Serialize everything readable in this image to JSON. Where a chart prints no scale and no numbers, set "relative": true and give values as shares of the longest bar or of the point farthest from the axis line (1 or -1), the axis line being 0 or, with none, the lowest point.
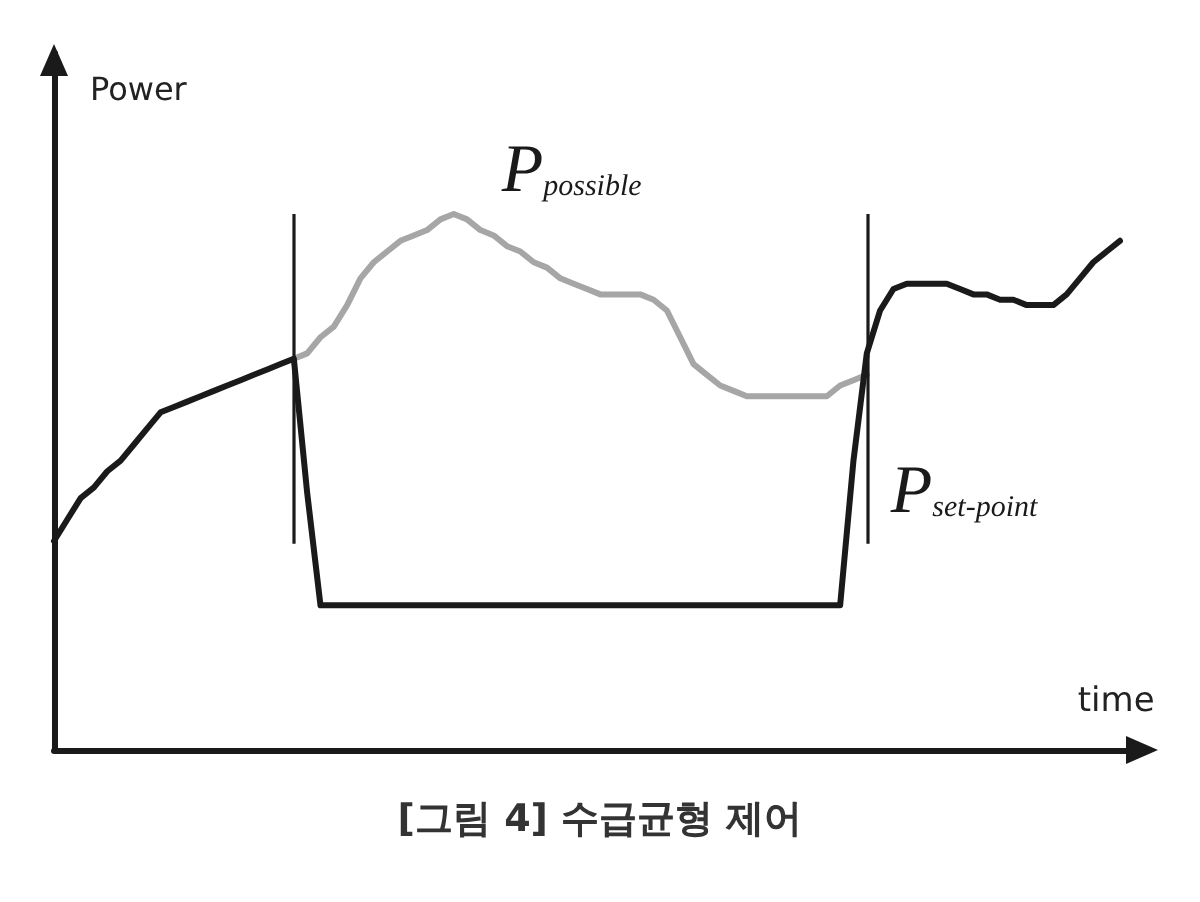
{
  "chart_data": {
    "type": "line",
    "title": "[그림 4] 수급균형 제어",
    "xlabel": "time",
    "ylabel": "Power",
    "relative": true,
    "categories": [
      null,
      null,
      null,
      null,
      null,
      null,
      null,
      null,
      null,
      null,
      null,
      null,
      null,
      null,
      null,
      null,
      null,
      null,
      null,
      null,
      null,
      null,
      null,
      null,
      null,
      null,
      null,
      null,
      null,
      null,
      null,
      null,
      null,
      null,
      null,
      null,
      null,
      null,
      null,
      null,
      null,
      null,
      null,
      null,
      null,
      null,
      null,
      null,
      null,
      null,
      null,
      null,
      null,
      null,
      null,
      null,
      null,
      null,
      null,
      null,
      null,
      null,
      null,
      null,
      null,
      null,
      null,
      null,
      null,
      null,
      null,
      null,
      null,
      null,
      null,
      null,
      null,
      null,
      null,
      null,
      null,
      null,
      null
    ],
    "series": [
      {
        "name": "P$_{possible}$",
        "color": "#a6a6a6",
        "values": [
          null,
          null,
          null,
          null,
          null,
          null,
          null,
          null,
          null,
          null,
          null,
          null,
          null,
          null,
          null,
          null,
          null,
          null,
          0.73,
          0.74,
          0.77,
          0.79,
          0.83,
          0.88,
          0.91,
          0.93,
          0.95,
          0.96,
          0.97,
          0.99,
          1.0,
          0.99,
          0.97,
          0.96,
          0.94,
          0.93,
          0.91,
          0.9,
          0.88,
          0.87,
          0.86,
          0.85,
          0.85,
          0.85,
          0.85,
          0.84,
          0.82,
          0.77,
          0.72,
          0.7,
          0.68,
          0.67,
          0.66,
          0.66,
          0.66,
          0.66,
          0.66,
          0.66,
          0.66,
          0.68,
          0.69,
          0.7,
          null,
          null,
          null,
          null,
          null,
          null,
          null,
          null,
          null,
          null,
          null,
          null,
          null,
          null,
          null,
          null,
          null,
          null,
          null,
          null,
          null
        ]
      },
      {
        "name": "P$_{set-point}$",
        "color": "#1a1a1a",
        "values": [
          0.39,
          0.43,
          0.47,
          0.49,
          0.52,
          0.54,
          0.57,
          0.6,
          0.63,
          0.64,
          0.65,
          0.66,
          0.67,
          0.68,
          0.69,
          0.7,
          0.71,
          0.72,
          0.73,
          0.48,
          0.27,
          0.27,
          0.27,
          0.27,
          0.27,
          0.27,
          0.27,
          0.27,
          0.27,
          0.27,
          0.27,
          0.27,
          0.27,
          0.27,
          0.27,
          0.27,
          0.27,
          0.27,
          0.27,
          0.27,
          0.27,
          0.27,
          0.27,
          0.27,
          0.27,
          0.27,
          0.27,
          0.27,
          0.27,
          0.27,
          0.27,
          0.27,
          0.27,
          0.27,
          0.27,
          0.27,
          0.27,
          0.27,
          0.27,
          0.27,
          0.54,
          0.74,
          0.82,
          0.86,
          0.87,
          0.87,
          0.87,
          0.87,
          0.86,
          0.85,
          0.85,
          0.84,
          0.84,
          0.83,
          0.83,
          0.83,
          0.85,
          0.88,
          0.91,
          0.93,
          0.95,
          null,
          null
        ]
      }
    ]
  }
}
